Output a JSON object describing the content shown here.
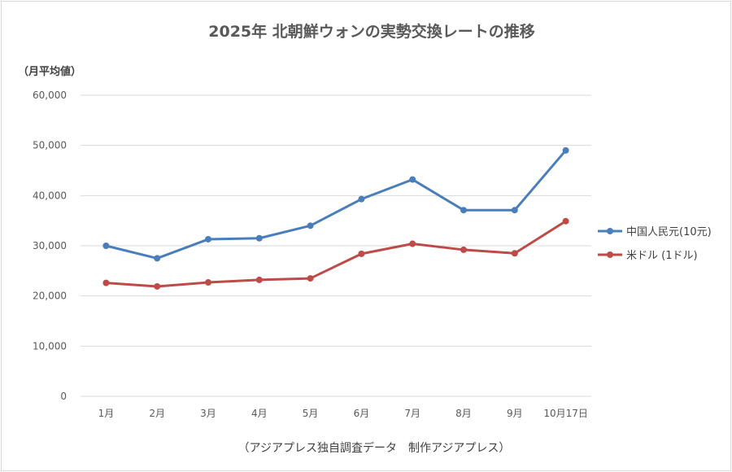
{
  "chart_data": {
    "type": "line",
    "title": "2025年  北朝鮮ウォンの実勢交換レートの推移",
    "ylabel": "（月平均値）",
    "xlabel": "",
    "source": "（アジアプレス独自調査データ　制作アジアプレス）",
    "categories": [
      "1月",
      "2月",
      "3月",
      "4月",
      "5月",
      "6月",
      "7月",
      "8月",
      "9月",
      "10月17日"
    ],
    "ylim": [
      0,
      60000
    ],
    "yticks": [
      0,
      10000,
      20000,
      30000,
      40000,
      50000,
      60000
    ],
    "ytick_labels": [
      "0",
      "10,000",
      "20,000",
      "30,000",
      "40,000",
      "50,000",
      "60,000"
    ],
    "grid": true,
    "legend_position": "right",
    "series": [
      {
        "name": "中国人民元(10元)",
        "color": "#4a7ebb",
        "values": [
          30000,
          27500,
          31300,
          31500,
          34000,
          39300,
          43200,
          37100,
          37100,
          49000
        ]
      },
      {
        "name": "米ドル (1ドル)",
        "color": "#be4b48",
        "values": [
          22600,
          21900,
          22700,
          23200,
          23500,
          28400,
          30400,
          29200,
          28500,
          34900
        ]
      }
    ]
  }
}
